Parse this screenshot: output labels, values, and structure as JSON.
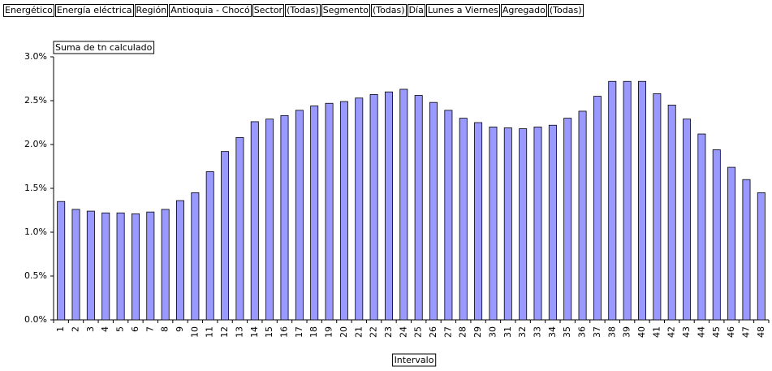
{
  "chart_data": {
    "type": "bar",
    "filters": [
      {
        "field": "Energético",
        "value": "Energía eléctrica"
      },
      {
        "field": "Región",
        "value": "Antioquia - Chocó"
      },
      {
        "field": "Sector",
        "value": "(Todas)"
      },
      {
        "field": "Segmento",
        "value": "(Todas)"
      },
      {
        "field": "Día",
        "value": "Lunes a Viernes"
      },
      {
        "field": "Agregado",
        "value": "(Todas)"
      }
    ],
    "y_label": "Suma de tn calculado",
    "x_label": "Intervalo",
    "categories": [
      "1",
      "2",
      "3",
      "4",
      "5",
      "6",
      "7",
      "8",
      "9",
      "10",
      "11",
      "12",
      "13",
      "14",
      "15",
      "16",
      "17",
      "18",
      "19",
      "20",
      "21",
      "22",
      "23",
      "24",
      "25",
      "26",
      "27",
      "28",
      "29",
      "30",
      "31",
      "32",
      "33",
      "34",
      "35",
      "36",
      "37",
      "38",
      "39",
      "40",
      "41",
      "42",
      "43",
      "44",
      "45",
      "46",
      "47",
      "48"
    ],
    "values": [
      1.35,
      1.26,
      1.24,
      1.22,
      1.22,
      1.21,
      1.23,
      1.26,
      1.36,
      1.45,
      1.69,
      1.92,
      2.08,
      2.26,
      2.29,
      2.33,
      2.39,
      2.44,
      2.47,
      2.49,
      2.53,
      2.57,
      2.6,
      2.63,
      2.56,
      2.48,
      2.39,
      2.3,
      2.25,
      2.2,
      2.19,
      2.18,
      2.2,
      2.22,
      2.3,
      2.38,
      2.55,
      2.72,
      2.72,
      2.72,
      2.58,
      2.45,
      2.29,
      2.12,
      1.94,
      1.74,
      1.6,
      1.45
    ],
    "color": "#9999ff",
    "ylim": [
      0,
      3
    ],
    "yticks": [
      {
        "value": 0,
        "label": "0.0%"
      },
      {
        "value": 0.5,
        "label": "0.5%"
      },
      {
        "value": 1,
        "label": "1.0%"
      },
      {
        "value": 1.5,
        "label": "1.5%"
      },
      {
        "value": 2,
        "label": "2.0%"
      },
      {
        "value": 2.5,
        "label": "2.5%"
      },
      {
        "value": 3,
        "label": "3.0%"
      }
    ],
    "grid": false
  }
}
